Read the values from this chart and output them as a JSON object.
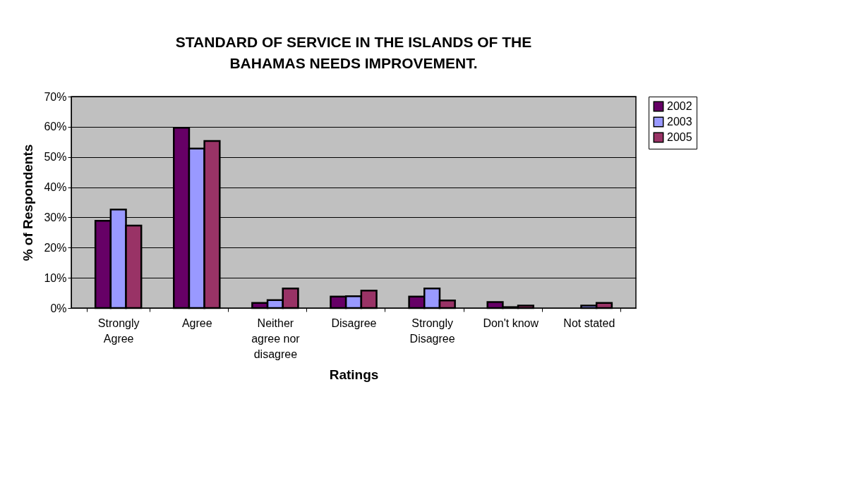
{
  "chart_data": {
    "type": "bar",
    "title": "STANDARD OF SERVICE IN THE ISLANDS OF THE BAHAMAS NEEDS IMPROVEMENT.",
    "xlabel": "Ratings",
    "ylabel": "% of Respondents",
    "categories": [
      "Strongly Agree",
      "Agree",
      "Neither agree nor disagree",
      "Disagree",
      "Strongly Disagree",
      "Don't know",
      "Not stated"
    ],
    "series": [
      {
        "name": "2002",
        "color": "#660066",
        "values": [
          28.9,
          59.7,
          1.7,
          3.8,
          3.8,
          2.0,
          null
        ]
      },
      {
        "name": "2003",
        "color": "#9999ff",
        "values": [
          32.6,
          52.8,
          2.6,
          3.9,
          6.5,
          0.3,
          0.8
        ]
      },
      {
        "name": "2005",
        "color": "#993366",
        "values": [
          27.3,
          55.3,
          6.5,
          5.8,
          2.5,
          0.8,
          1.7
        ]
      }
    ],
    "ylim": [
      0,
      70
    ],
    "yticks": [
      {
        "value": 0,
        "label": "0%"
      },
      {
        "value": 10,
        "label": "10%"
      },
      {
        "value": 20,
        "label": "20%"
      },
      {
        "value": 30,
        "label": "30%"
      },
      {
        "value": 40,
        "label": "40%"
      },
      {
        "value": 50,
        "label": "50%"
      },
      {
        "value": 60,
        "label": "60%"
      },
      {
        "value": 70,
        "label": "70%"
      }
    ],
    "grid": "y",
    "legend": "right"
  }
}
